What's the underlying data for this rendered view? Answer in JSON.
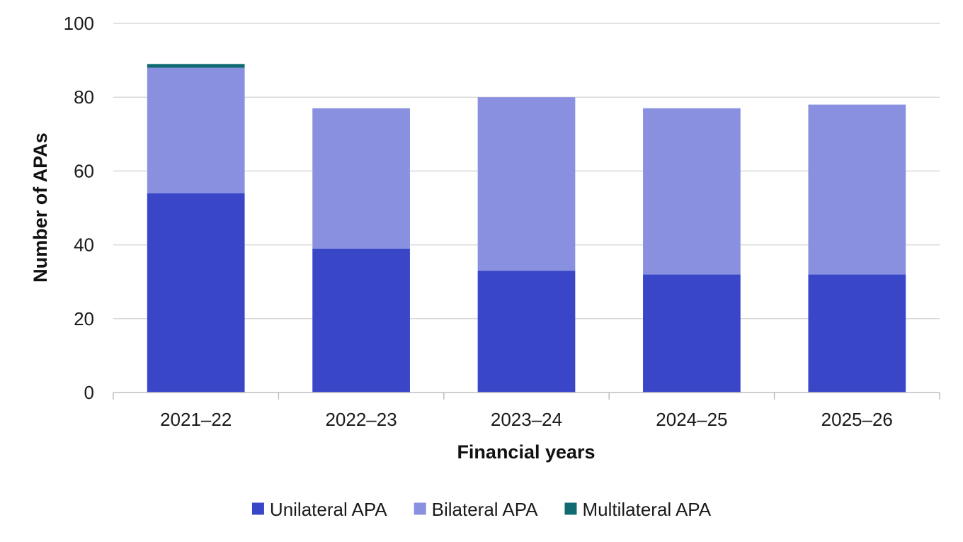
{
  "chart_data": {
    "type": "bar",
    "stacked": true,
    "categories": [
      "2021–22",
      "2022–23",
      "2023–24",
      "2024–25",
      "2025–26"
    ],
    "series": [
      {
        "name": "Unilateral APA",
        "values": [
          54,
          39,
          33,
          32,
          32
        ],
        "color": "#3946c8"
      },
      {
        "name": "Bilateral APA",
        "values": [
          34,
          38,
          47,
          45,
          46
        ],
        "color": "#8990df"
      },
      {
        "name": "Multilateral APA",
        "values": [
          1,
          0,
          0,
          0,
          0
        ],
        "color": "#0f6b6f"
      }
    ],
    "xlabel": "Financial years",
    "ylabel": "Number of APAs",
    "ylim": [
      0,
      100
    ],
    "yticks": [
      0,
      20,
      40,
      60,
      80,
      100
    ],
    "grid": true,
    "legend_position": "bottom"
  }
}
